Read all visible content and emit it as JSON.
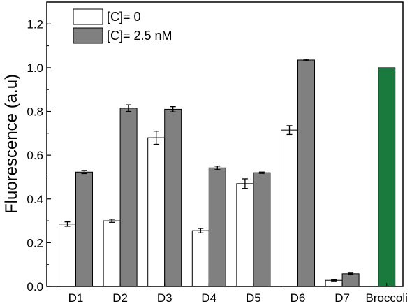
{
  "chart_data": {
    "type": "bar",
    "title": "",
    "xlabel": "",
    "ylabel": "Fluorescence (a.u)",
    "ylim": [
      0,
      1.3
    ],
    "yticks": [
      0.0,
      0.2,
      0.4,
      0.6,
      0.8,
      1.0,
      1.2
    ],
    "grid": false,
    "legend_position": "top-left",
    "categories": [
      "D1",
      "D2",
      "D3",
      "D4",
      "D5",
      "D6",
      "D7",
      "Broccoli"
    ],
    "series": [
      {
        "name": "[C]= 0",
        "color": "#ffffff",
        "values": [
          0.285,
          0.3,
          0.68,
          0.255,
          0.47,
          0.715,
          0.028,
          null
        ],
        "errors": [
          0.01,
          0.007,
          0.03,
          0.01,
          0.022,
          0.02,
          0.003,
          null
        ]
      },
      {
        "name": "[C]= 2.5 nM",
        "color": "#808080",
        "values": [
          0.523,
          0.815,
          0.81,
          0.542,
          0.52,
          1.035,
          0.058,
          null
        ],
        "errors": [
          0.007,
          0.015,
          0.012,
          0.008,
          0.003,
          0.004,
          0.003,
          null
        ]
      },
      {
        "name": "",
        "color": "#1a7a3e",
        "values": [
          null,
          null,
          null,
          null,
          null,
          null,
          null,
          1.0
        ],
        "errors": [
          null,
          null,
          null,
          null,
          null,
          null,
          null,
          null
        ]
      }
    ]
  }
}
